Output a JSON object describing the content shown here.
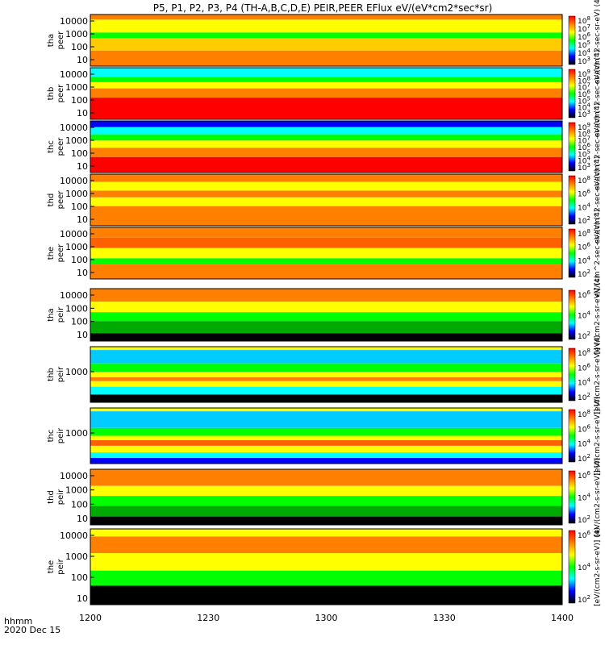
{
  "chart_data": {
    "type": "heatmap",
    "title": "P5, P1, P2, P3, P4 (TH-A,B,C,D,E) PEIR,PEER EFlux eV/(eV*cm2*sec*sr)",
    "x_label_line1": "hhmm",
    "x_label_line2": "2020 Dec 15",
    "x_ticks": [
      "1200",
      "1230",
      "1300",
      "1330",
      "1400"
    ],
    "x_range": [
      "1200",
      "1400"
    ],
    "y_scale": "log",
    "colorbar_scale": "log",
    "colorbar_label_electrons": "eV/(cm^2-sec-sr-eV) (4)",
    "colorbar_label_ions": "[eV/(cm2-s-sr-eV)] (4)",
    "colormap": [
      "#000000",
      "#0000ff",
      "#00ffff",
      "#00ff00",
      "#ffff00",
      "#ff8000",
      "#ff0000"
    ],
    "panels": [
      {
        "label_line1": "tha",
        "label_line2": "peer",
        "y_ticks": [
          "10",
          "100",
          "1000",
          "10000"
        ],
        "colorbar_ticks": [
          "10^8",
          "10^7",
          "10^6",
          "10^5",
          "10^4",
          "10^3"
        ]
      },
      {
        "label_line1": "thb",
        "label_line2": "peer",
        "y_ticks": [
          "10",
          "100",
          "1000",
          "10000"
        ],
        "colorbar_ticks": [
          "10^9",
          "10^8",
          "10^7",
          "10^6",
          "10^5",
          "10^4",
          "10^3"
        ]
      },
      {
        "label_line1": "thc",
        "label_line2": "peer",
        "y_ticks": [
          "10",
          "100",
          "1000",
          "10000"
        ],
        "colorbar_ticks": [
          "10^9",
          "10^8",
          "10^7",
          "10^6",
          "10^5",
          "10^4",
          "10^3"
        ]
      },
      {
        "label_line1": "thd",
        "label_line2": "peer",
        "y_ticks": [
          "10",
          "100",
          "1000",
          "10000"
        ],
        "colorbar_ticks": [
          "10^8",
          "10^6",
          "10^4",
          "10^2"
        ]
      },
      {
        "label_line1": "the",
        "label_line2": "peer",
        "y_ticks": [
          "10",
          "100",
          "1000",
          "10000"
        ],
        "colorbar_ticks": [
          "10^8",
          "10^6",
          "10^4",
          "10^2"
        ]
      },
      {
        "label_line1": "tha",
        "label_line2": "peir",
        "y_ticks": [
          "10",
          "100",
          "1000",
          "10000"
        ],
        "colorbar_ticks": [
          "10^6",
          "10^4",
          "10^2"
        ]
      },
      {
        "label_line1": "thb",
        "label_line2": "peir",
        "y_ticks": [
          "1000"
        ],
        "colorbar_ticks": [
          "10^8",
          "10^6",
          "10^4",
          "10^2"
        ]
      },
      {
        "label_line1": "thc",
        "label_line2": "peir",
        "y_ticks": [
          "1000"
        ],
        "colorbar_ticks": [
          "10^8",
          "10^6",
          "10^4",
          "10^2"
        ]
      },
      {
        "label_line1": "thd",
        "label_line2": "peir",
        "y_ticks": [
          "10",
          "100",
          "1000",
          "10000"
        ],
        "colorbar_ticks": [
          "10^6",
          "10^4",
          "10^2"
        ]
      },
      {
        "label_line1": "the",
        "label_line2": "peir",
        "y_ticks": [
          "10",
          "100",
          "1000",
          "10000"
        ],
        "colorbar_ticks": [
          "10^6",
          "10^4",
          "10^2"
        ]
      }
    ]
  }
}
